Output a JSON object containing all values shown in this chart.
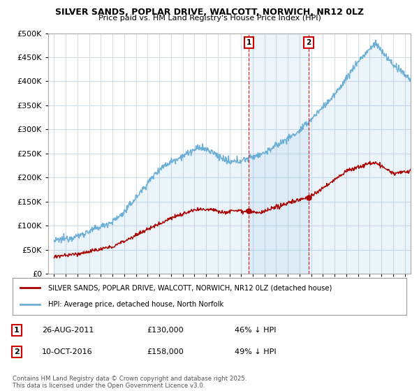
{
  "title": "SILVER SANDS, POPLAR DRIVE, WALCOTT, NORWICH, NR12 0LZ",
  "subtitle": "Price paid vs. HM Land Registry's House Price Index (HPI)",
  "legend_line1": "SILVER SANDS, POPLAR DRIVE, WALCOTT, NORWICH, NR12 0LZ (detached house)",
  "legend_line2": "HPI: Average price, detached house, North Norfolk",
  "footer": "Contains HM Land Registry data © Crown copyright and database right 2025.\nThis data is licensed under the Open Government Licence v3.0.",
  "sale1_date": 2011.65,
  "sale1_label": "1",
  "sale1_price": 130000,
  "sale1_text": "26-AUG-2011",
  "sale1_pct": "46% ↓ HPI",
  "sale2_date": 2016.78,
  "sale2_label": "2",
  "sale2_price": 158000,
  "sale2_text": "10-OCT-2016",
  "sale2_pct": "49% ↓ HPI",
  "hpi_color": "#6baed6",
  "price_color": "#aa0000",
  "marker_color": "#cc0000",
  "ylim": [
    0,
    500000
  ],
  "xlim": [
    1994.5,
    2025.5
  ],
  "yticks": [
    0,
    50000,
    100000,
    150000,
    200000,
    250000,
    300000,
    350000,
    400000,
    450000,
    500000
  ],
  "background_color": "#ffffff",
  "grid_color": "#d0dce8"
}
